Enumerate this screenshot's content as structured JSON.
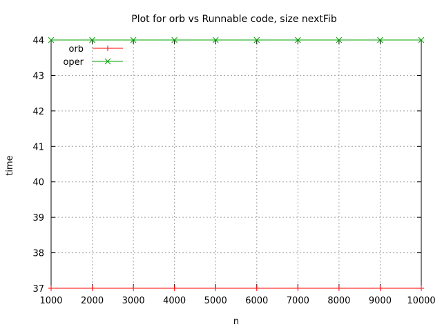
{
  "chart_data": {
    "type": "line",
    "title": "Plot for orb vs Runnable code, size nextFib",
    "xlabel": "n",
    "ylabel": "time",
    "xlim": [
      1000,
      10000
    ],
    "ylim": [
      37,
      44
    ],
    "x_ticks": [
      1000,
      2000,
      3000,
      4000,
      5000,
      6000,
      7000,
      8000,
      9000,
      10000
    ],
    "y_ticks": [
      37,
      38,
      39,
      40,
      41,
      42,
      43,
      44
    ],
    "grid": true,
    "legend_position": "top-left",
    "x": [
      1000,
      2000,
      3000,
      4000,
      5000,
      6000,
      7000,
      8000,
      9000,
      10000
    ],
    "series": [
      {
        "name": "orb",
        "color": "#ff0000",
        "marker": "plus",
        "values": [
          37,
          37,
          37,
          37,
          37,
          37,
          37,
          37,
          37,
          37
        ]
      },
      {
        "name": "oper",
        "color": "#00a000",
        "marker": "cross",
        "values": [
          44,
          44,
          44,
          44,
          44,
          44,
          44,
          44,
          44,
          44
        ]
      }
    ]
  }
}
